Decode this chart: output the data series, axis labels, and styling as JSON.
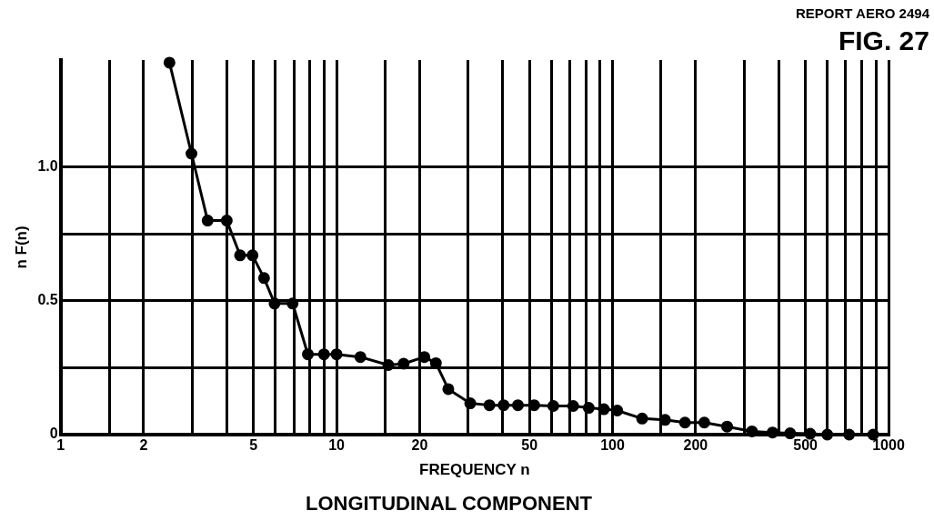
{
  "chart_data": {
    "type": "line",
    "title": "LONGITUDINAL COMPONENT",
    "xlabel": "FREQUENCY n",
    "ylabel": "n F(n)",
    "annotations": [
      "REPORT AERO 2494",
      "FIG. 27"
    ],
    "log": "x",
    "grid": true,
    "marker": "circle",
    "line_style": "solid",
    "xlim": [
      1,
      1000
    ],
    "ylim": [
      0,
      1.4
    ],
    "xticks": [
      1,
      {
        "value": 1.5,
        "label": null
      },
      2,
      {
        "value": 3,
        "label": null
      },
      {
        "value": 4,
        "label": null
      },
      5,
      {
        "value": 6,
        "label": null
      },
      {
        "value": 7,
        "label": null
      },
      {
        "value": 8,
        "label": null
      },
      {
        "value": 9,
        "label": null
      },
      10,
      {
        "value": 15,
        "label": null
      },
      20,
      {
        "value": 30,
        "label": null
      },
      {
        "value": 40,
        "label": null
      },
      50,
      {
        "value": 60,
        "label": null
      },
      {
        "value": 70,
        "label": null
      },
      {
        "value": 80,
        "label": null
      },
      {
        "value": 90,
        "label": null
      },
      100,
      {
        "value": 150,
        "label": null
      },
      200,
      {
        "value": 300,
        "label": null
      },
      {
        "value": 400,
        "label": null
      },
      500,
      {
        "value": 600,
        "label": null
      },
      {
        "value": 700,
        "label": null
      },
      {
        "value": 800,
        "label": null
      },
      {
        "value": 900,
        "label": null
      },
      1000
    ],
    "yticks": [
      0,
      {
        "value": 0.25,
        "label": null
      },
      {
        "value": 0.5,
        "label": "0.5"
      },
      {
        "value": 0.75,
        "label": null
      },
      {
        "value": 1,
        "label": "1.0"
      }
    ],
    "series": [
      {
        "color": "#000000",
        "x": [
          2.48,
          2.98,
          3.41,
          4.0,
          4.47,
          4.96,
          5.46,
          5.96,
          6.93,
          7.87,
          9.0,
          10.0,
          12.2,
          15.4,
          17.5,
          20.8,
          22.9,
          25.4,
          30.5,
          35.8,
          40.3,
          45.4,
          52,
          61,
          72,
          82,
          93,
          104,
          128,
          155,
          183,
          215,
          260,
          320,
          380,
          440,
          520,
          600,
          720,
          880
        ],
        "values": [
          1.39,
          1.05,
          0.8,
          0.8,
          0.67,
          0.67,
          0.585,
          0.49,
          0.49,
          0.3,
          0.3,
          0.3,
          0.29,
          0.26,
          0.265,
          0.29,
          0.267,
          0.17,
          0.117,
          0.11,
          0.11,
          0.11,
          0.11,
          0.107,
          0.107,
          0.1,
          0.095,
          0.09,
          0.06,
          0.055,
          0.045,
          0.045,
          0.03,
          0.012,
          0.008,
          0.005,
          0.003,
          0,
          0,
          0
        ]
      }
    ]
  }
}
